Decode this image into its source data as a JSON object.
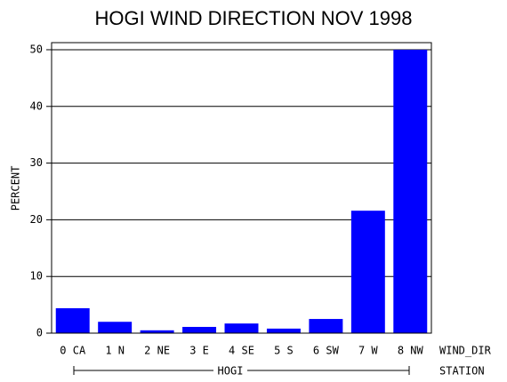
{
  "chart_data": {
    "type": "bar",
    "title": "HOGI WIND DIRECTION NOV 1998",
    "y_label": "PERCENT",
    "x_label": "WIND_DIR",
    "group_label": "HOGI",
    "group_axis_label": "STATION",
    "categories": [
      "0 CA",
      "1 N",
      "2 NE",
      "3 E",
      "4 SE",
      "5 S",
      "6 SW",
      "7 W",
      "8 NW"
    ],
    "values": [
      4.4,
      2.0,
      0.5,
      1.1,
      1.7,
      0.8,
      2.5,
      21.6,
      50.0
    ],
    "color": "#0000ff",
    "ylim": [
      0,
      51.25
    ],
    "yticks": [
      0,
      10,
      20,
      30,
      40,
      50
    ],
    "grid": true
  }
}
